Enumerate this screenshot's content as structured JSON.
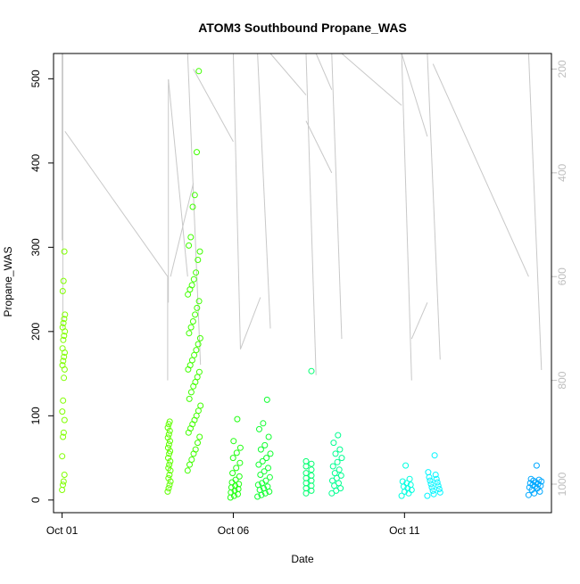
{
  "chart_data": {
    "type": "scatter",
    "title": "ATOM3 Southbound Propane_WAS",
    "xlabel": "Date",
    "ylabel": "Propane_WAS",
    "x_axis_type": "date",
    "xlim": [
      "2016-09-30T18:00",
      "2016-10-15T07:00"
    ],
    "x_ticks": [
      {
        "value": "2016-10-01",
        "label": "Oct 01"
      },
      {
        "value": "2016-10-06",
        "label": "Oct 06"
      },
      {
        "value": "2016-10-11",
        "label": "Oct 11"
      }
    ],
    "ylim": [
      -15,
      530
    ],
    "y_ticks": [
      0,
      100,
      200,
      300,
      400,
      500
    ],
    "secondary_axis": {
      "side": "right",
      "reversed": true,
      "lim": [
        1055,
        170
      ],
      "ticks": [
        200,
        400,
        600,
        800,
        1000
      ],
      "color": "#bebebe"
    },
    "grid": false,
    "legend": "none",
    "marker": "open-circle",
    "clusters": [
      {
        "start": "2016-10-01T00:00",
        "end": "2016-10-01T02:00",
        "color": "#80ff00",
        "values": [
          12,
          18,
          22,
          30,
          52,
          75,
          80,
          95,
          105,
          118,
          145,
          155,
          160,
          165,
          170,
          175,
          180,
          190,
          195,
          200,
          205,
          210,
          215,
          220,
          248,
          260,
          295
        ]
      },
      {
        "start": "2016-10-04T02:00",
        "end": "2016-10-04T04:00",
        "color": "#60ff00",
        "values": [
          10,
          14,
          18,
          22,
          26,
          30,
          35,
          38,
          42,
          46,
          50,
          55,
          58,
          62,
          66,
          70,
          74,
          78,
          82,
          86,
          90,
          93
        ]
      },
      {
        "start": "2016-10-04T16:00",
        "end": "2016-10-05T01:00",
        "color": "#40ff00",
        "values": [
          35,
          42,
          48,
          55,
          60,
          68,
          75,
          80,
          85,
          90,
          95,
          100,
          106,
          112,
          120,
          128,
          135,
          140,
          146,
          152,
          155,
          160,
          166,
          172,
          178,
          185,
          192,
          198,
          205,
          212,
          220,
          228,
          236,
          244,
          250,
          255,
          262,
          270,
          285,
          295,
          302,
          312,
          348,
          362,
          413,
          509
        ]
      },
      {
        "start": "2016-10-05T22:00",
        "end": "2016-10-06T05:00",
        "color": "#20ff10",
        "values": [
          3,
          5,
          7,
          9,
          11,
          13,
          15,
          17,
          19,
          21,
          24,
          28,
          32,
          38,
          44,
          50,
          56,
          62,
          70,
          96
        ]
      },
      {
        "start": "2016-10-06T17:00",
        "end": "2016-10-07T02:00",
        "color": "#10ff30",
        "values": [
          4,
          6,
          8,
          10,
          12,
          14,
          16,
          18,
          20,
          23,
          27,
          30,
          34,
          38,
          42,
          46,
          50,
          55,
          60,
          65,
          75,
          84,
          91,
          119
        ]
      },
      {
        "start": "2016-10-08T03:00",
        "end": "2016-10-08T10:00",
        "color": "#00ff70",
        "values": [
          8,
          11,
          14,
          17,
          20,
          23,
          26,
          29,
          32,
          36,
          40,
          43,
          46,
          153
        ]
      },
      {
        "start": "2016-10-08T21:00",
        "end": "2016-10-09T04:00",
        "color": "#00ff90",
        "values": [
          8,
          11,
          14,
          17,
          20,
          23,
          26,
          29,
          32,
          36,
          40,
          45,
          50,
          55,
          60,
          68,
          77
        ]
      },
      {
        "start": "2016-10-10T22:00",
        "end": "2016-10-11T05:00",
        "color": "#00ffe0",
        "values": [
          5,
          8,
          10,
          12,
          14,
          16,
          18,
          20,
          22,
          25,
          41
        ]
      },
      {
        "start": "2016-10-11T16:00",
        "end": "2016-10-12T01:00",
        "color": "#00f5ff",
        "values": [
          5,
          7,
          9,
          11,
          13,
          15,
          17,
          19,
          21,
          23,
          25,
          27,
          30,
          33,
          53
        ]
      },
      {
        "start": "2016-10-14T15:00",
        "end": "2016-10-15T00:00",
        "color": "#00a8ff",
        "values": [
          6,
          8,
          10,
          12,
          14,
          15,
          16,
          17,
          18,
          19,
          20,
          21,
          22,
          23,
          24,
          25,
          41
        ]
      }
    ],
    "altitude_trace": {
      "axis": "secondary",
      "color": "#c8c8c8",
      "segments": [
        {
          "x1": "2016-10-01T00:00",
          "x2": "2016-10-01T00:00",
          "y1": 170,
          "y2": 530
        },
        {
          "x1": "2016-10-01T00:30",
          "x2": "2016-10-01T00:30",
          "y1": 170,
          "y2": 700
        },
        {
          "x1": "2016-10-01T02:00",
          "x2": "2016-10-04T02:00",
          "y1": 320,
          "y2": 600
        },
        {
          "x1": "2016-10-04T02:00",
          "x2": "2016-10-04T02:00",
          "y1": 600,
          "y2": 800
        },
        {
          "x1": "2016-10-04T02:30",
          "x2": "2016-10-04T02:30",
          "y1": 220,
          "y2": 650
        },
        {
          "x1": "2016-10-04T02:30",
          "x2": "2016-10-04T16:00",
          "y1": 220,
          "y2": 600
        },
        {
          "x1": "2016-10-04T04:00",
          "x2": "2016-10-04T20:00",
          "y1": 600,
          "y2": 420
        },
        {
          "x1": "2016-10-04T16:00",
          "x2": "2016-10-05T01:00",
          "y1": 170,
          "y2": 770
        },
        {
          "x1": "2016-10-04T20:00",
          "x2": "2016-10-06T00:00",
          "y1": 200,
          "y2": 340
        },
        {
          "x1": "2016-10-06T00:00",
          "x2": "2016-10-06T05:00",
          "y1": 170,
          "y2": 740
        },
        {
          "x1": "2016-10-06T05:00",
          "x2": "2016-10-06T19:00",
          "y1": 740,
          "y2": 640
        },
        {
          "x1": "2016-10-06T17:00",
          "x2": "2016-10-07T02:00",
          "y1": 170,
          "y2": 700
        },
        {
          "x1": "2016-10-07T02:00",
          "x2": "2016-10-08T03:00",
          "y1": 170,
          "y2": 250
        },
        {
          "x1": "2016-10-08T03:00",
          "x2": "2016-10-08T10:00",
          "y1": 170,
          "y2": 790
        },
        {
          "x1": "2016-10-08T03:00",
          "x2": "2016-10-08T21:00",
          "y1": 300,
          "y2": 400
        },
        {
          "x1": "2016-10-08T10:00",
          "x2": "2016-10-08T21:00",
          "y1": 170,
          "y2": 240
        },
        {
          "x1": "2016-10-08T21:00",
          "x2": "2016-10-09T04:00",
          "y1": 170,
          "y2": 720
        },
        {
          "x1": "2016-10-09T04:00",
          "x2": "2016-10-10T22:00",
          "y1": 170,
          "y2": 270
        },
        {
          "x1": "2016-10-10T22:00",
          "x2": "2016-10-11T05:00",
          "y1": 170,
          "y2": 800
        },
        {
          "x1": "2016-10-10T22:00",
          "x2": "2016-10-11T16:00",
          "y1": 170,
          "y2": 330
        },
        {
          "x1": "2016-10-11T05:00",
          "x2": "2016-10-11T16:00",
          "y1": 720,
          "y2": 650
        },
        {
          "x1": "2016-10-11T16:00",
          "x2": "2016-10-12T01:00",
          "y1": 170,
          "y2": 760
        },
        {
          "x1": "2016-10-11T20:00",
          "x2": "2016-10-14T15:00",
          "y1": 190,
          "y2": 600
        },
        {
          "x1": "2016-10-14T15:00",
          "x2": "2016-10-15T00:00",
          "y1": 170,
          "y2": 780
        }
      ]
    }
  }
}
